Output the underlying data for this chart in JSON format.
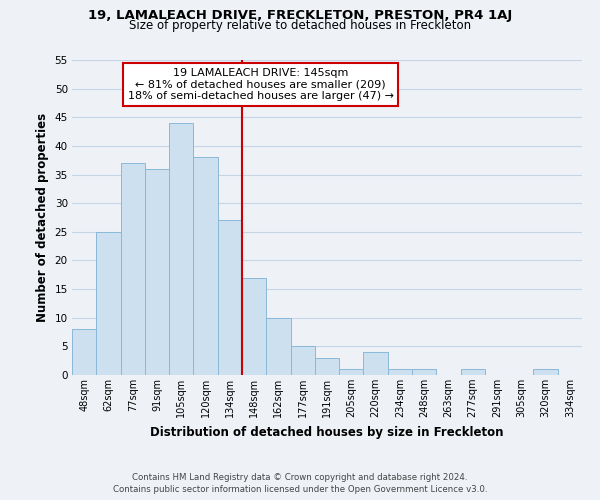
{
  "title_line1": "19, LAMALEACH DRIVE, FRECKLETON, PRESTON, PR4 1AJ",
  "title_line2": "Size of property relative to detached houses in Freckleton",
  "xlabel": "Distribution of detached houses by size in Freckleton",
  "ylabel": "Number of detached properties",
  "bar_labels": [
    "48sqm",
    "62sqm",
    "77sqm",
    "91sqm",
    "105sqm",
    "120sqm",
    "134sqm",
    "148sqm",
    "162sqm",
    "177sqm",
    "191sqm",
    "205sqm",
    "220sqm",
    "234sqm",
    "248sqm",
    "263sqm",
    "277sqm",
    "291sqm",
    "305sqm",
    "320sqm",
    "334sqm"
  ],
  "bar_values": [
    8,
    25,
    37,
    36,
    44,
    38,
    27,
    17,
    10,
    5,
    3,
    1,
    4,
    1,
    1,
    0,
    1,
    0,
    0,
    1,
    0
  ],
  "bar_color": "#cce0f0",
  "bar_edge_color": "#8ab8d8",
  "vline_color": "#cc0000",
  "annotation_title": "19 LAMALEACH DRIVE: 145sqm",
  "annotation_line1": "← 81% of detached houses are smaller (209)",
  "annotation_line2": "18% of semi-detached houses are larger (47) →",
  "annotation_box_color": "#ffffff",
  "annotation_box_edge": "#cc0000",
  "ylim": [
    0,
    55
  ],
  "yticks": [
    0,
    5,
    10,
    15,
    20,
    25,
    30,
    35,
    40,
    45,
    50,
    55
  ],
  "footer_line1": "Contains HM Land Registry data © Crown copyright and database right 2024.",
  "footer_line2": "Contains public sector information licensed under the Open Government Licence v3.0.",
  "background_color": "#eef2f7",
  "grid_color": "#c5d5e5"
}
